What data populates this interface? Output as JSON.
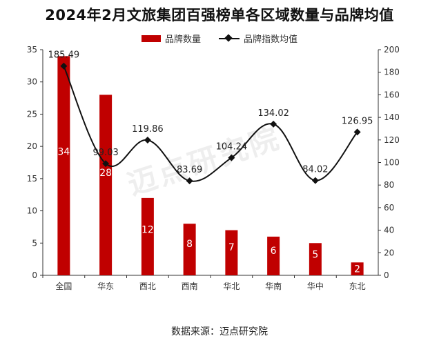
{
  "title": "2024年2月文旅集团百强榜单各区域数量与品牌均值",
  "footnote": "数据来源：迈点研究院",
  "watermark": "迈点研究院",
  "colors": {
    "bar": "#c00000",
    "line": "#111111",
    "bar_label": "#ffffff"
  },
  "chart_data": {
    "type": "bar",
    "title": "2024年2月文旅集团百强榜单各区域数量与品牌均值",
    "categories": [
      "全国",
      "华东",
      "西北",
      "西南",
      "华北",
      "华南",
      "华中",
      "东北"
    ],
    "series": [
      {
        "name": "品牌数量",
        "type": "bar",
        "axis": "left",
        "values": [
          34,
          28,
          12,
          8,
          7,
          6,
          5,
          2
        ],
        "labels": [
          "34",
          "28",
          "12",
          "8",
          "7",
          "6",
          "5",
          "2"
        ]
      },
      {
        "name": "品牌指数均值",
        "type": "line",
        "axis": "right",
        "values": [
          185.49,
          99.03,
          119.86,
          83.69,
          104.24,
          134.02,
          84.02,
          126.95
        ],
        "labels": [
          "185.49",
          "99.03",
          "119.86",
          "83.69",
          "104.24",
          "134.02",
          "84.02",
          "126.95"
        ]
      }
    ],
    "left_axis": {
      "ylim": [
        0,
        35
      ],
      "ticks": [
        "0",
        "5",
        "10",
        "15",
        "20",
        "25",
        "30",
        "35"
      ]
    },
    "right_axis": {
      "ylim": [
        0,
        200
      ],
      "ticks": [
        "0",
        "20",
        "40",
        "60",
        "80",
        "100",
        "120",
        "140",
        "160",
        "180",
        "200"
      ]
    },
    "grid": false,
    "legend": "top-center"
  }
}
